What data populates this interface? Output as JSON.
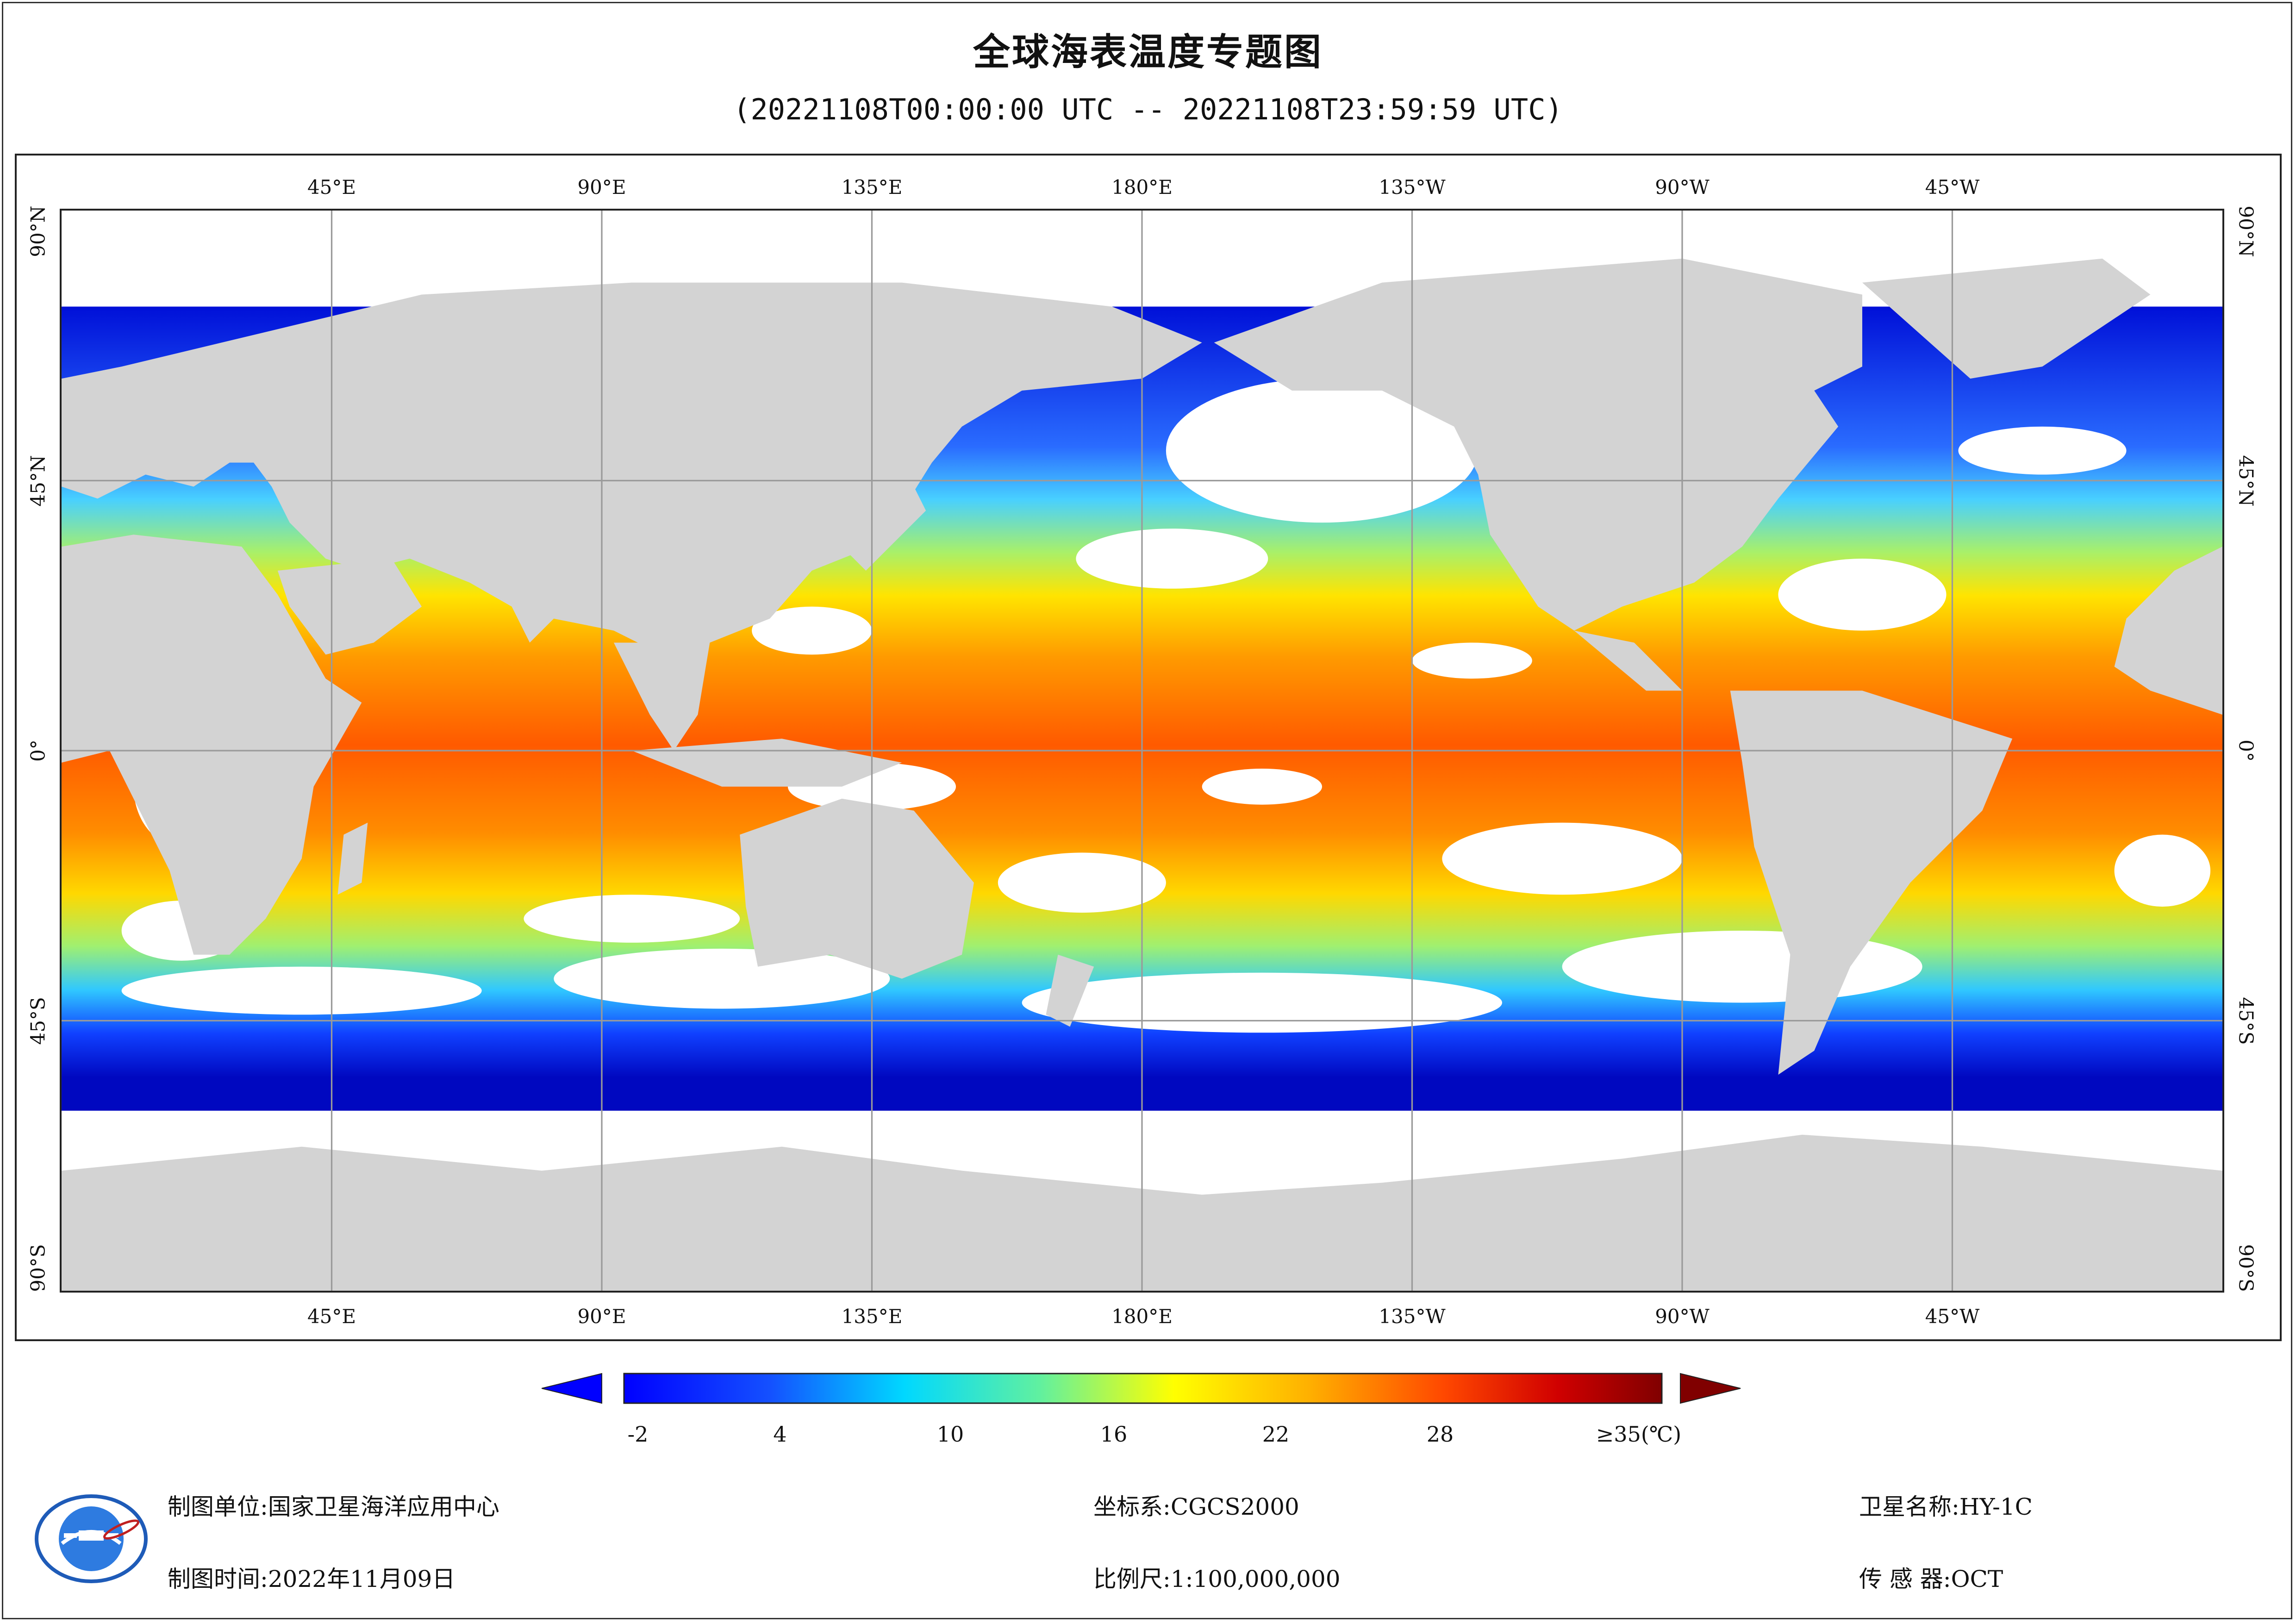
{
  "title": "全球海表温度专题图",
  "subtitle": "(20221108T00:00:00 UTC -- 20221108T23:59:59 UTC)",
  "map": {
    "top_labels": [
      "45°E",
      "90°E",
      "135°E",
      "180°E",
      "135°W",
      "90°W",
      "45°W"
    ],
    "bottom_labels": [
      "45°E",
      "90°E",
      "135°E",
      "180°E",
      "135°W",
      "90°W",
      "45°W"
    ],
    "left_labels": [
      "90°N",
      "45°N",
      "0°",
      "45°S",
      "90°S"
    ],
    "right_labels": [
      "90°N",
      "45°N",
      "0°",
      "45°S",
      "90°S"
    ],
    "colors": {
      "land": "#d3d3d3",
      "cloud_no_data": "#ffffff",
      "gridline": "#9a9a9a"
    }
  },
  "legend": {
    "ticks": [
      "-2",
      "4",
      "10",
      "16",
      "22",
      "28",
      "≥35(℃)"
    ],
    "min_color": "#0000ff",
    "max_color": "#800000"
  },
  "footer": {
    "producer_label": "制图单位:",
    "producer_value": "国家卫星海洋应用中心",
    "date_label": "制图时间:",
    "date_value": "2022年11月09日",
    "crs_label": "坐标系:",
    "crs_value": "CGCS2000",
    "scale_label": "比例尺:",
    "scale_value": "1:100,000,000",
    "satellite_label": "卫星名称:",
    "satellite_value": "HY-1C",
    "sensor_label": "传 感 器:",
    "sensor_value": "OCT"
  }
}
